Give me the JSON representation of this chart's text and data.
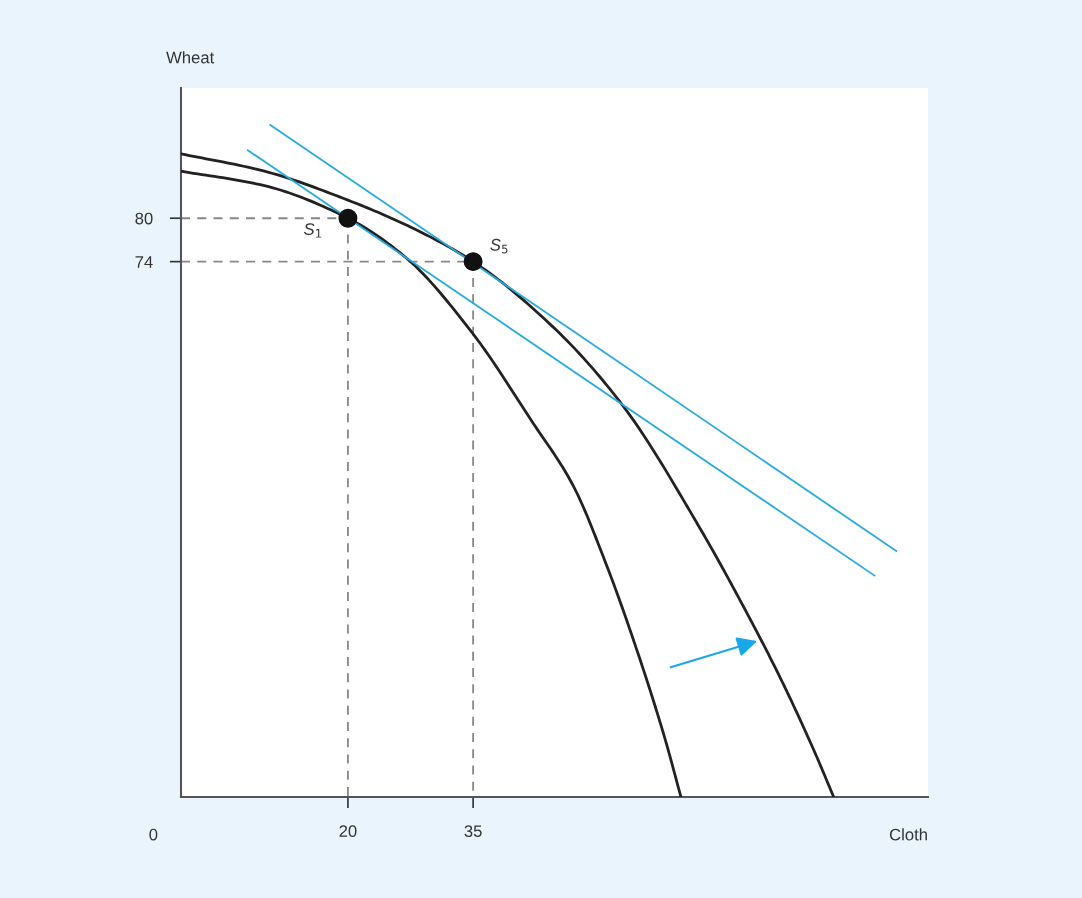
{
  "chart_data": {
    "type": "line",
    "xlabel": "Cloth",
    "ylabel": "Wheat",
    "xlim": [
      0,
      89.5
    ],
    "ylim": [
      0,
      98
    ],
    "xticks": [
      20,
      35
    ],
    "yticks": [
      74,
      80
    ],
    "grid": false,
    "legend": false,
    "marker": "none",
    "annotations": [
      "0",
      {
        "text": "S$_{1}$",
        "x": 20,
        "y": 80
      },
      {
        "text": "S$_{5}$",
        "x": 35,
        "y": 74
      }
    ],
    "series": [
      {
        "color": "#222222",
        "x": [
          0,
          10,
          20,
          27,
          35,
          42,
          47,
          51,
          55,
          58,
          59.9
        ],
        "values": [
          86.5,
          84.5,
          80,
          74.5,
          64,
          52,
          43,
          32,
          19,
          8,
          0
        ]
      },
      {
        "color": "#222222",
        "x": [
          0,
          10,
          20,
          28,
          35,
          45,
          53,
          62,
          68,
          72,
          76,
          78.2
        ],
        "values": [
          88.9,
          86.5,
          82.5,
          78.5,
          74,
          64.5,
          54,
          37.5,
          25,
          16,
          6,
          0
        ]
      },
      {
        "type": "line",
        "color": "#29abe2",
        "x": [
          8.0,
          83.1
        ],
        "values": [
          89.4,
          30.6
        ]
      },
      {
        "type": "line",
        "color": "#29abe2",
        "x": [
          10.7,
          85.7
        ],
        "values": [
          92.9,
          34.0
        ]
      },
      {
        "type": "line",
        "color": "#888888",
        "line_style": "dashed",
        "x": [
          0,
          20
        ],
        "values": [
          80,
          80
        ]
      },
      {
        "type": "line",
        "color": "#888888",
        "line_style": "dashed",
        "x": [
          20,
          20
        ],
        "values": [
          80,
          0
        ]
      },
      {
        "type": "line",
        "color": "#888888",
        "line_style": "dashed",
        "x": [
          0,
          35
        ],
        "values": [
          74,
          74
        ]
      },
      {
        "type": "line",
        "color": "#888888",
        "line_style": "dashed",
        "x": [
          35,
          35
        ],
        "values": [
          74,
          0
        ]
      },
      {
        "type": "scatter",
        "color": "#111111",
        "marker": "circle",
        "x": [
          20,
          35
        ],
        "values": [
          80,
          74
        ]
      }
    ]
  }
}
